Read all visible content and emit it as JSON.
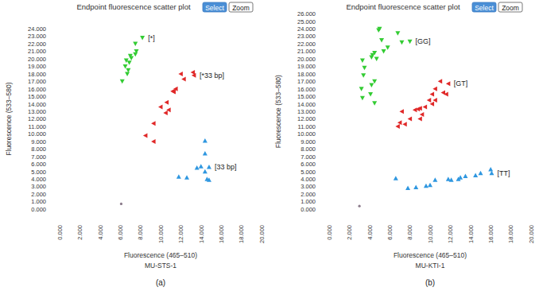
{
  "chart_data": [
    {
      "type": "scatter",
      "title": "Endpoint fluorescence scatter plot",
      "buttons": [
        "Select",
        "Zoom"
      ],
      "x_label": "Fluorescence (465–510)",
      "y_label": "Fluorescence (533–580)",
      "subtitle": "MU-STS-1",
      "panel_label": "(a)",
      "xlim": [
        0,
        20
      ],
      "ylim": [
        0,
        24
      ],
      "xticks": [
        {
          "value": 0,
          "label": "0.000"
        },
        {
          "value": 2,
          "label": "2.000"
        },
        {
          "value": 4,
          "label": "4.000"
        },
        {
          "value": 6,
          "label": "6.000"
        },
        {
          "value": 8,
          "label": "8.000"
        },
        {
          "value": 10,
          "label": "10.000"
        },
        {
          "value": 12,
          "label": "12.000"
        },
        {
          "value": 14,
          "label": "14.000"
        },
        {
          "value": 16,
          "label": "16.000"
        },
        {
          "value": 18,
          "label": "18.000"
        },
        {
          "value": 20,
          "label": "20.000"
        }
      ],
      "yticks": [
        {
          "value": 0,
          "label": "0.000"
        },
        {
          "value": 1,
          "label": "1.000"
        },
        {
          "value": 2,
          "label": "2.000"
        },
        {
          "value": 3,
          "label": "3.000"
        },
        {
          "value": 4,
          "label": "4.000"
        },
        {
          "value": 5,
          "label": "5.000"
        },
        {
          "value": 6,
          "label": "6.000"
        },
        {
          "value": 7,
          "label": "7.000"
        },
        {
          "value": 8,
          "label": "8.000"
        },
        {
          "value": 9,
          "label": "9.000"
        },
        {
          "value": 10,
          "label": "10.000"
        },
        {
          "value": 11,
          "label": "11.000"
        },
        {
          "value": 12,
          "label": "12.000"
        },
        {
          "value": 13,
          "label": "13.000"
        },
        {
          "value": 14,
          "label": "14.000"
        },
        {
          "value": 15,
          "label": "15.000"
        },
        {
          "value": 16,
          "label": "16.000"
        },
        {
          "value": 17,
          "label": "17.000"
        },
        {
          "value": 18,
          "label": "18.000"
        },
        {
          "value": 19,
          "label": "19.000"
        },
        {
          "value": 20,
          "label": "20.000"
        },
        {
          "value": 21,
          "label": "21.000"
        },
        {
          "value": 22,
          "label": "22.000"
        },
        {
          "value": 23,
          "label": "23.000"
        },
        {
          "value": 24,
          "label": "24.000"
        }
      ],
      "grid": false,
      "series": [
        {
          "name": "[*]",
          "color": "#33cc33",
          "marker": "triangle-down",
          "x": [
            8.2,
            7.5,
            7.6,
            7.5,
            7.0,
            7.1,
            6.6,
            6.9,
            6.5,
            6.8,
            6.7,
            6.2
          ],
          "y": [
            22.8,
            22.0,
            21.0,
            20.6,
            20.4,
            20.1,
            19.8,
            19.5,
            19.0,
            18.5,
            18.0,
            17.0
          ]
        },
        {
          "name": "[*33 bp]",
          "color": "#e02828",
          "marker": "triangle-left",
          "x": [
            13.2,
            12.0,
            13.3,
            12.3,
            11.5,
            11.2,
            11.3,
            10.6,
            10.0,
            10.8,
            10.5,
            9.3,
            8.5,
            9.3
          ],
          "y": [
            18.2,
            18.0,
            17.8,
            17.3,
            16.0,
            15.7,
            15.6,
            14.2,
            13.6,
            13.2,
            12.8,
            11.4,
            9.8,
            9.0
          ]
        },
        {
          "name": "[33 bp]",
          "color": "#2f97e0",
          "marker": "triangle-up",
          "x": [
            14.4,
            14.4,
            14.8,
            14.0,
            14.4,
            13.6,
            14.6,
            14.8,
            12.6,
            11.8
          ],
          "y": [
            9.1,
            7.4,
            5.6,
            5.7,
            5.0,
            5.5,
            4.0,
            3.9,
            4.2,
            4.3
          ]
        },
        {
          "color": "#8a7a8a",
          "marker": "circle",
          "x": [
            6.1
          ],
          "y": [
            0.7
          ]
        }
      ]
    },
    {
      "type": "scatter",
      "title": "Endpoint fluorescence scatter plot",
      "buttons": [
        "Select",
        "Zoom"
      ],
      "x_label": "Fluorescence (465–510)",
      "y_label": "Fluorescence (533–580)",
      "subtitle": "MU-KTI-1",
      "panel_label": "(b)",
      "xlim": [
        0,
        20
      ],
      "ylim": [
        0,
        26
      ],
      "xticks": [
        {
          "value": 0,
          "label": "0.000"
        },
        {
          "value": 2,
          "label": "2.000"
        },
        {
          "value": 4,
          "label": "4.000"
        },
        {
          "value": 6,
          "label": "6.000"
        },
        {
          "value": 8,
          "label": "8.000"
        },
        {
          "value": 10,
          "label": "10.000"
        },
        {
          "value": 12,
          "label": "12.000"
        },
        {
          "value": 14,
          "label": "14.000"
        },
        {
          "value": 16,
          "label": "16.000"
        },
        {
          "value": 18,
          "label": "18.000"
        },
        {
          "value": 20,
          "label": "20.000"
        }
      ],
      "yticks": [
        {
          "value": 0,
          "label": "0.000"
        },
        {
          "value": 1,
          "label": "1.000"
        },
        {
          "value": 2,
          "label": "2.000"
        },
        {
          "value": 3,
          "label": "3.000"
        },
        {
          "value": 4,
          "label": "4.000"
        },
        {
          "value": 5,
          "label": "5.000"
        },
        {
          "value": 6,
          "label": "6.000"
        },
        {
          "value": 7,
          "label": "7.000"
        },
        {
          "value": 8,
          "label": "8.000"
        },
        {
          "value": 9,
          "label": "9.000"
        },
        {
          "value": 10,
          "label": "10.000"
        },
        {
          "value": 11,
          "label": "11.000"
        },
        {
          "value": 12,
          "label": "12.000"
        },
        {
          "value": 13,
          "label": "13.000"
        },
        {
          "value": 14,
          "label": "14.000"
        },
        {
          "value": 15,
          "label": "15.000"
        },
        {
          "value": 16,
          "label": "16.000"
        },
        {
          "value": 17,
          "label": "17.000"
        },
        {
          "value": 18,
          "label": "18.000"
        },
        {
          "value": 19,
          "label": "19.000"
        },
        {
          "value": 20,
          "label": "20.000"
        },
        {
          "value": 21,
          "label": "21.000"
        },
        {
          "value": 22,
          "label": "22.000"
        },
        {
          "value": 23,
          "label": "23.000"
        },
        {
          "value": 24,
          "label": "24.000"
        },
        {
          "value": 25,
          "label": "25.000"
        },
        {
          "value": 26,
          "label": "26.000"
        }
      ],
      "grid": false,
      "series": [
        {
          "name": "[GG]",
          "color": "#33cc33",
          "marker": "triangle-down",
          "x": [
            5.0,
            4.9,
            6.8,
            7.2,
            8.0,
            5.2,
            5.8,
            5.4,
            4.5,
            4.2,
            4.7,
            4.3,
            3.3,
            3.5,
            3.4,
            3.2,
            4.2,
            4.1,
            4.5,
            3.3,
            4.5
          ],
          "y": [
            24.0,
            23.8,
            23.4,
            22.2,
            22.3,
            22.5,
            21.5,
            21.0,
            20.8,
            20.2,
            20.0,
            20.5,
            19.8,
            18.8,
            17.8,
            16.0,
            16.5,
            15.3,
            14.1,
            14.8,
            17.0
          ]
        },
        {
          "name": "[GT]",
          "color": "#e02828",
          "marker": "triangle-left",
          "x": [
            11.0,
            11.8,
            10.5,
            11.3,
            11.6,
            10.2,
            9.9,
            10.2,
            10.5,
            9.5,
            9.0,
            8.8,
            8.5,
            9.2,
            7.2,
            8.0,
            7.0,
            6.8,
            7.5,
            9.0
          ],
          "y": [
            17.0,
            16.7,
            16.0,
            15.5,
            15.3,
            15.3,
            14.5,
            14.0,
            14.5,
            13.6,
            13.4,
            13.3,
            13.2,
            12.6,
            13.0,
            12.0,
            11.5,
            11.0,
            11.3,
            12.0
          ]
        },
        {
          "name": "[TT]",
          "color": "#2f97e0",
          "marker": "triangle-up",
          "x": [
            16.0,
            16.1,
            15.0,
            14.5,
            13.5,
            13.0,
            12.8,
            12.1,
            11.8,
            10.5,
            10.0,
            9.6,
            8.6,
            7.8,
            6.6
          ],
          "y": [
            5.3,
            4.8,
            4.8,
            4.5,
            4.4,
            4.2,
            4.0,
            3.9,
            4.0,
            3.9,
            3.2,
            3.1,
            2.9,
            2.8,
            4.1
          ]
        },
        {
          "color": "#8a7a8a",
          "marker": "circle",
          "x": [
            3.0
          ],
          "y": [
            0.4
          ]
        }
      ]
    }
  ]
}
